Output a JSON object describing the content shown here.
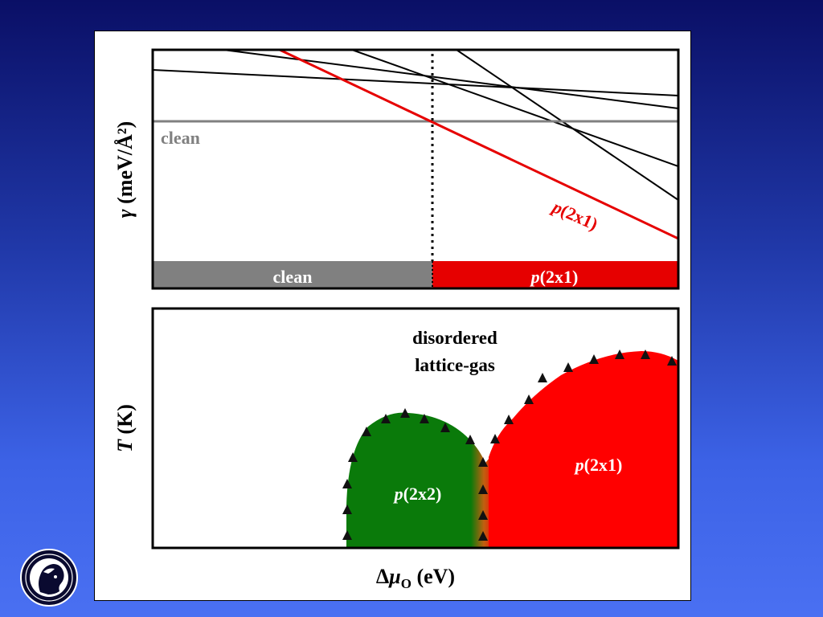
{
  "top_panel": {
    "y_axis_symbol": "γ",
    "y_axis_unit": "(meV/Å²)",
    "clean_line_label": "clean",
    "p2x1_line_prefix": "p",
    "p2x1_line_suffix": "(2x1)",
    "bar_clean_label": "clean",
    "bar_p2x1_prefix": "p",
    "bar_p2x1_suffix": "(2x1)",
    "colors": {
      "clean": "#808080",
      "p2x1": "#e60000",
      "other_lines": "#000000"
    }
  },
  "bottom_panel": {
    "y_axis_symbol": "T",
    "y_axis_unit": "(K)",
    "disordered_line1": "disordered",
    "disordered_line2": "lattice-gas",
    "p2x2_prefix": "p",
    "p2x2_suffix": "(2x2)",
    "p2x1_prefix": "p",
    "p2x1_suffix": "(2x1)",
    "colors": {
      "p2x2": "#0a7a0a",
      "p2x1": "#ff0000",
      "markers": "#111111"
    }
  },
  "x_axis": {
    "delta": "Δ",
    "mu": "μ",
    "subscript": "O",
    "unit": "(eV)"
  },
  "logo": {
    "icon": "max-planck-society-logo-icon"
  }
}
